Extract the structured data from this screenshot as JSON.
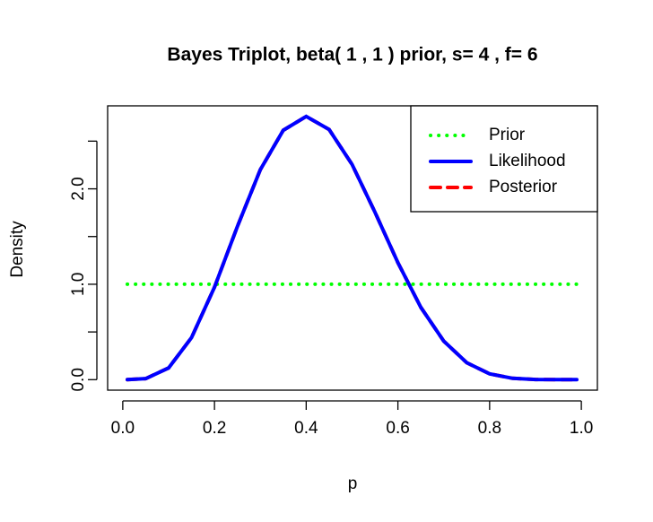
{
  "chart_data": {
    "type": "line",
    "title": "Bayes Triplot, beta( 1 , 1 ) prior, s= 4 , f= 6",
    "xlabel": "p",
    "ylabel": "Density",
    "x": [
      0.01,
      0.05,
      0.1,
      0.15,
      0.2,
      0.25,
      0.3,
      0.35,
      0.4,
      0.45,
      0.5,
      0.55,
      0.6,
      0.65,
      0.7,
      0.75,
      0.8,
      0.85,
      0.9,
      0.95,
      0.99
    ],
    "series": [
      {
        "name": "Prior",
        "color": "#00ff00",
        "style": "dotted",
        "values": [
          1,
          1,
          1,
          1,
          1,
          1,
          1,
          1,
          1,
          1,
          1,
          1,
          1,
          1,
          1,
          1,
          1,
          1,
          1,
          1,
          1
        ]
      },
      {
        "name": "Likelihood",
        "color": "#0000ff",
        "style": "solid",
        "values": [
          0.0,
          0.011,
          0.123,
          0.441,
          0.969,
          1.606,
          2.201,
          2.614,
          2.759,
          2.622,
          2.256,
          1.755,
          1.226,
          0.758,
          0.404,
          0.178,
          0.061,
          0.014,
          0.002,
          0.0,
          0.0
        ]
      },
      {
        "name": "Posterior",
        "color": "#ff0000",
        "style": "dashed",
        "values": [
          0.0,
          0.011,
          0.123,
          0.441,
          0.969,
          1.606,
          2.201,
          2.614,
          2.759,
          2.622,
          2.256,
          1.755,
          1.226,
          0.758,
          0.404,
          0.178,
          0.061,
          0.014,
          0.002,
          0.0,
          0.0
        ]
      }
    ],
    "xlim": [
      -0.033,
      1.035
    ],
    "ylim": [
      -0.11,
      2.87
    ],
    "xticks": [
      {
        "value": 0,
        "label": "0.0"
      },
      0.2,
      0.4,
      0.6,
      0.8,
      {
        "value": 1,
        "label": "1.0"
      }
    ],
    "yticks": [
      {
        "value": 0,
        "label": "0.0"
      },
      {
        "value": 1,
        "label": "1.0"
      },
      {
        "value": 2,
        "label": "2.0"
      }
    ],
    "yminor_ticks": [
      0.5,
      1.5,
      2.5
    ],
    "legend": "top-right"
  }
}
